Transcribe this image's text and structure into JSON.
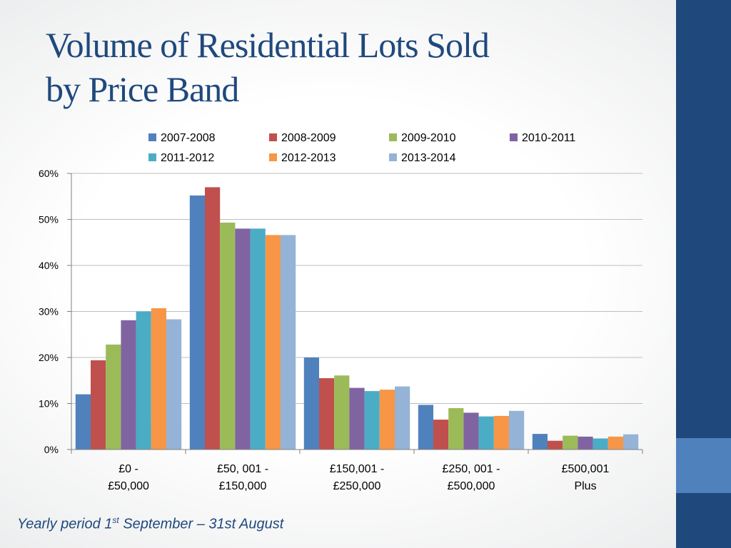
{
  "slide": {
    "title_line1": "Volume of Residential Lots Sold",
    "title_line2": "by Price Band",
    "footnote_pre": "Yearly period 1",
    "footnote_sup": "st",
    "footnote_post": " September – 31st August",
    "colors": {
      "sidebar": "#1f497d",
      "sidebar_accent": "#4f81bd",
      "title": "#1f497d"
    }
  },
  "chart_data": {
    "type": "bar",
    "categories": [
      [
        "£0 -",
        "£50,000"
      ],
      [
        "£50, 001 -",
        "£150,000"
      ],
      [
        "£150,001 -",
        "£250,000"
      ],
      [
        "£250, 001 -",
        "£500,000"
      ],
      [
        "£500,001",
        "Plus"
      ]
    ],
    "series": [
      {
        "name": "2007-2008",
        "color": "#4f81bd",
        "values": [
          12.0,
          55.2,
          20.0,
          9.7,
          3.4
        ]
      },
      {
        "name": "2008-2009",
        "color": "#c0504d",
        "values": [
          19.4,
          57.0,
          15.5,
          6.5,
          1.9
        ]
      },
      {
        "name": "2009-2010",
        "color": "#9bbb59",
        "values": [
          22.8,
          49.3,
          16.1,
          9.0,
          3.0
        ]
      },
      {
        "name": "2010-2011",
        "color": "#8064a2",
        "values": [
          28.1,
          48.0,
          13.4,
          8.0,
          2.8
        ]
      },
      {
        "name": "2011-2012",
        "color": "#4bacc6",
        "values": [
          30.0,
          48.0,
          12.7,
          7.2,
          2.4
        ]
      },
      {
        "name": "2012-2013",
        "color": "#f79646",
        "values": [
          30.7,
          46.6,
          13.0,
          7.3,
          2.8
        ]
      },
      {
        "name": "2013-2014",
        "color": "#95b3d7",
        "values": [
          28.3,
          46.6,
          13.7,
          8.4,
          3.3
        ]
      }
    ],
    "y_ticks": [
      "0%",
      "10%",
      "20%",
      "30%",
      "40%",
      "50%",
      "60%"
    ],
    "ylim": [
      0,
      60
    ],
    "grid": true,
    "legend_position": "top",
    "title": "",
    "xlabel": "",
    "ylabel": ""
  }
}
